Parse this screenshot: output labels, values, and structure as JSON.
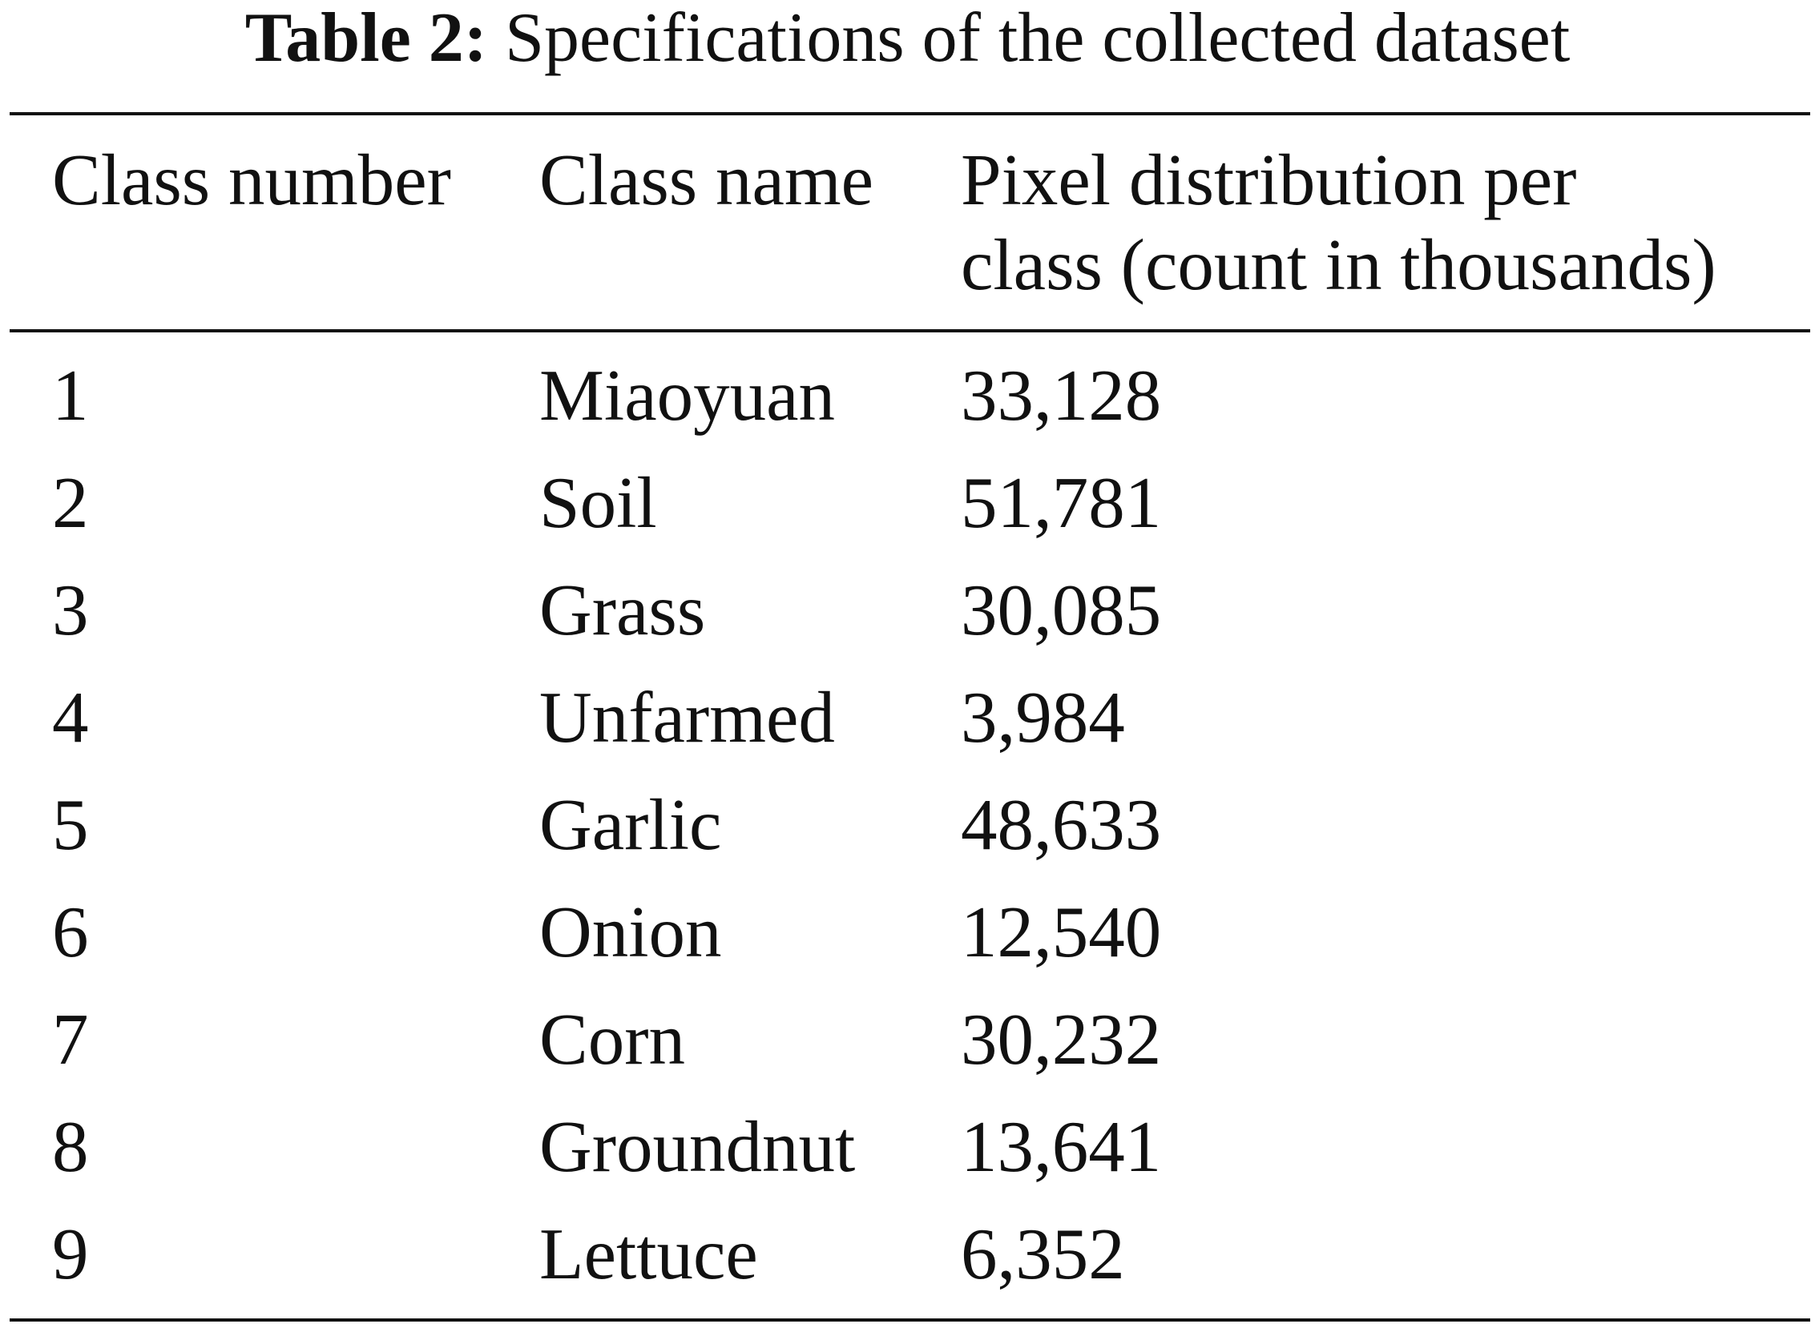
{
  "caption": {
    "label": "Table 2:",
    "text": "Specifications of the collected dataset"
  },
  "table": {
    "header": [
      "Class number",
      "Class name",
      "Pixel distribution per class (count in thousands)"
    ],
    "rows": [
      [
        "1",
        "Miaoyuan",
        "33,128"
      ],
      [
        "2",
        "Soil",
        "51,781"
      ],
      [
        "3",
        "Grass",
        "30,085"
      ],
      [
        "4",
        "Unfarmed",
        "3,984"
      ],
      [
        "5",
        "Garlic",
        "48,633"
      ],
      [
        "6",
        "Onion",
        "12,540"
      ],
      [
        "7",
        "Corn",
        "30,232"
      ],
      [
        "8",
        "Groundnut",
        "13,641"
      ],
      [
        "9",
        "Lettuce",
        "6,352"
      ]
    ]
  }
}
